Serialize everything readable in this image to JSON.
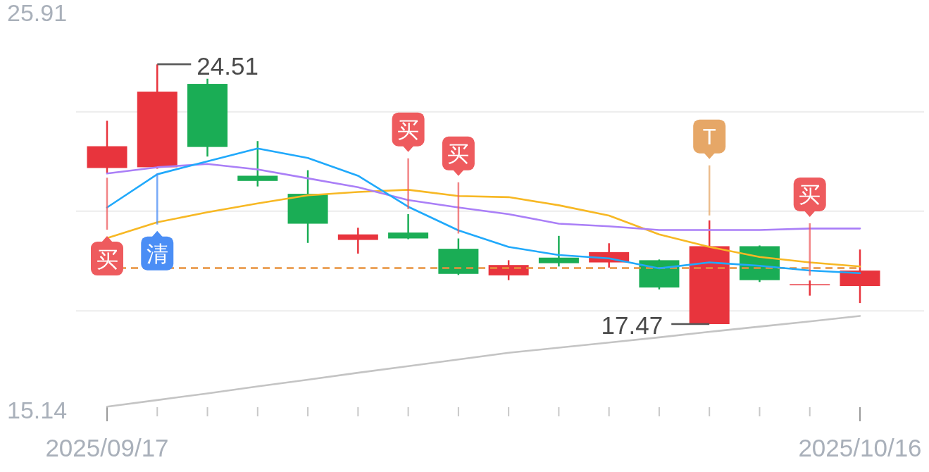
{
  "chart_data": {
    "type": "candlestick",
    "categories": [
      "2025/09/17",
      null,
      null,
      null,
      null,
      null,
      null,
      null,
      null,
      null,
      null,
      null,
      null,
      null,
      null,
      "2025/10/16"
    ],
    "ohlc": [
      [
        21.7,
        22.98,
        21.57,
        22.29
      ],
      [
        21.72,
        24.51,
        21.68,
        23.77
      ],
      [
        23.98,
        24.12,
        22.01,
        22.27
      ],
      [
        21.49,
        22.43,
        21.2,
        21.35
      ],
      [
        21.0,
        21.64,
        19.67,
        20.19
      ],
      [
        19.75,
        20.08,
        19.38,
        19.9
      ],
      [
        19.95,
        20.45,
        19.77,
        19.79
      ],
      [
        19.51,
        19.79,
        18.8,
        18.83
      ],
      [
        18.79,
        19.2,
        18.66,
        19.07
      ],
      [
        19.27,
        19.86,
        19.03,
        19.12
      ],
      [
        19.14,
        19.66,
        19.0,
        19.42
      ],
      [
        19.2,
        19.22,
        18.41,
        18.46
      ],
      [
        17.47,
        20.28,
        17.47,
        19.58
      ],
      [
        19.58,
        19.6,
        18.61,
        18.66
      ],
      [
        18.55,
        18.65,
        18.24,
        18.55
      ],
      [
        18.5,
        19.49,
        18.04,
        18.92
      ]
    ],
    "colors": [
      "#e8343d",
      "#e8343d",
      "#1aad55",
      "#1aad55",
      "#1aad55",
      "#e8343d",
      "#1aad55",
      "#1aad55",
      "#e8343d",
      "#1aad55",
      "#e8343d",
      "#1aad55",
      "#e8343d",
      "#1aad55",
      "#e8343d",
      "#e8343d"
    ],
    "value_labels": [
      null,
      "24.51",
      null,
      null,
      null,
      null,
      null,
      null,
      null,
      null,
      null,
      null,
      "17.47",
      null,
      null,
      null
    ],
    "series": [
      {
        "type": "line",
        "color": "#c4c4c4",
        "values": [
          15.23,
          15.41,
          15.59,
          15.78,
          15.96,
          16.15,
          16.33,
          16.51,
          16.69,
          16.83,
          16.97,
          17.11,
          17.26,
          17.4,
          17.54,
          17.69
        ]
      },
      {
        "type": "line",
        "color": "#f7b824",
        "values": [
          19.8,
          20.23,
          20.5,
          20.74,
          20.96,
          21.05,
          21.11,
          20.94,
          20.91,
          20.69,
          20.41,
          19.9,
          19.56,
          19.29,
          19.14,
          19.03
        ]
      },
      {
        "type": "line",
        "color": "#aa7ff7",
        "values": [
          21.55,
          21.72,
          21.81,
          21.66,
          21.42,
          21.18,
          20.83,
          20.63,
          20.45,
          20.19,
          20.12,
          20.02,
          20.02,
          20.02,
          20.06,
          20.06
        ]
      },
      {
        "type": "line",
        "color": "#20a9fb",
        "values": [
          20.63,
          21.53,
          21.88,
          22.23,
          21.97,
          21.49,
          20.65,
          20.01,
          19.56,
          19.34,
          19.25,
          18.98,
          19.14,
          19.05,
          18.92,
          18.85
        ]
      },
      {
        "type": "scatter",
        "values": [
          19.77,
          19.91,
          null,
          null,
          null,
          null,
          22.22,
          21.57,
          null,
          null,
          null,
          null,
          22.03,
          null,
          20.46,
          null
        ],
        "colors": [
          "#ee5b5e",
          "#4b8ef5",
          null,
          null,
          null,
          null,
          "#ee5b5e",
          "#ee5b5e",
          null,
          null,
          null,
          null,
          "#e6a767",
          null,
          "#ee5b5e",
          null
        ],
        "value_labels": [
          "买",
          "清",
          null,
          null,
          null,
          null,
          "买",
          "买",
          null,
          null,
          null,
          null,
          "T",
          null,
          "买",
          null
        ]
      }
    ],
    "ylim": [
      15.14,
      25.91
    ],
    "yticks": [
      25.91,
      {
        "value": 23.22,
        "label": null
      },
      {
        "value": 20.53,
        "label": null
      },
      {
        "value": 17.83,
        "label": null
      },
      15.14
    ],
    "grid": "y",
    "ref_lines": [
      {
        "axis": "y",
        "value": 18.99,
        "color": "#e8913c",
        "line_style": "dashed"
      }
    ]
  }
}
